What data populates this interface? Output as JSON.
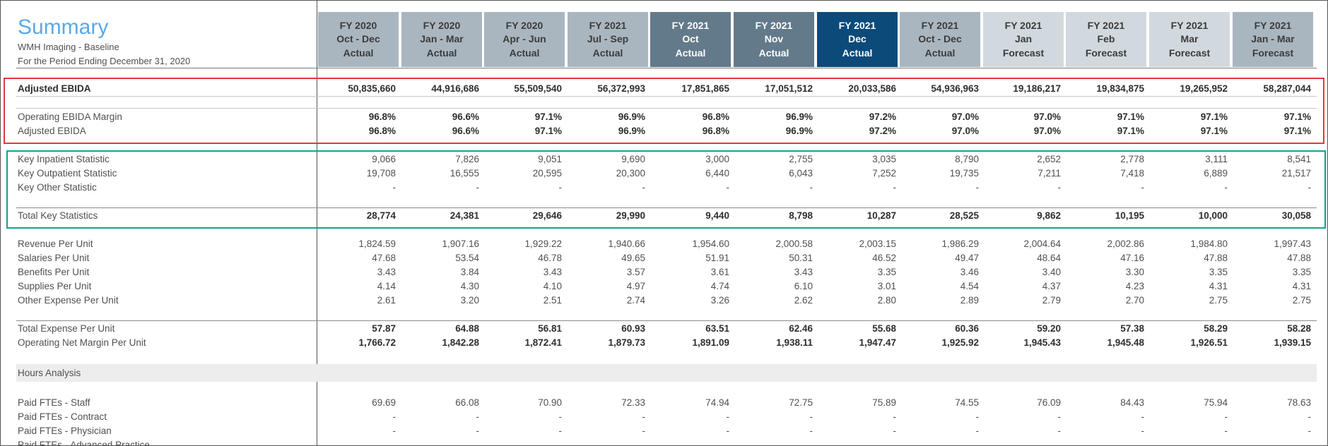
{
  "header": {
    "title": "Summary",
    "subtitle": "WMH Imaging - Baseline",
    "period": "For the Period Ending December 31, 2020"
  },
  "columns": [
    {
      "l1": "FY 2020",
      "l2": "Oct - Dec",
      "l3": "Actual"
    },
    {
      "l1": "FY 2020",
      "l2": "Jan - Mar",
      "l3": "Actual"
    },
    {
      "l1": "FY 2020",
      "l2": "Apr - Jun",
      "l3": "Actual"
    },
    {
      "l1": "FY 2021",
      "l2": "Jul - Sep",
      "l3": "Actual"
    },
    {
      "l1": "FY 2021",
      "l2": "Oct",
      "l3": "Actual"
    },
    {
      "l1": "FY 2021",
      "l2": "Nov",
      "l3": "Actual"
    },
    {
      "l1": "FY 2021",
      "l2": "Dec",
      "l3": "Actual"
    },
    {
      "l1": "FY 2021",
      "l2": "Oct - Dec",
      "l3": "Actual"
    },
    {
      "l1": "FY 2021",
      "l2": "Jan",
      "l3": "Forecast"
    },
    {
      "l1": "FY 2021",
      "l2": "Feb",
      "l3": "Forecast"
    },
    {
      "l1": "FY 2021",
      "l2": "Mar",
      "l3": "Forecast"
    },
    {
      "l1": "FY 2021",
      "l2": "Jan - Mar",
      "l3": "Forecast"
    }
  ],
  "rows": [
    {
      "label": "Adjusted EBIDA",
      "bold": true,
      "values": [
        "50,835,660",
        "44,916,686",
        "55,509,540",
        "56,372,993",
        "17,851,865",
        "17,051,512",
        "20,033,586",
        "54,936,963",
        "19,186,217",
        "19,834,875",
        "19,265,952",
        "58,287,044"
      ]
    },
    {
      "label": "Operating EBIDA Margin",
      "bold": false,
      "values": [
        "96.8%",
        "96.6%",
        "97.1%",
        "96.9%",
        "96.8%",
        "96.9%",
        "97.2%",
        "97.0%",
        "97.0%",
        "97.1%",
        "97.1%",
        "97.1%"
      ]
    },
    {
      "label": "Adjusted EBIDA",
      "bold": false,
      "values": [
        "96.8%",
        "96.6%",
        "97.1%",
        "96.9%",
        "96.8%",
        "96.9%",
        "97.2%",
        "97.0%",
        "97.0%",
        "97.1%",
        "97.1%",
        "97.1%"
      ]
    },
    {
      "label": "Key Inpatient Statistic",
      "bold": false,
      "values": [
        "9,066",
        "7,826",
        "9,051",
        "9,690",
        "3,000",
        "2,755",
        "3,035",
        "8,790",
        "2,652",
        "2,778",
        "3,111",
        "8,541"
      ]
    },
    {
      "label": "Key Outpatient Statistic",
      "bold": false,
      "values": [
        "19,708",
        "16,555",
        "20,595",
        "20,300",
        "6,440",
        "6,043",
        "7,252",
        "19,735",
        "7,211",
        "7,418",
        "6,889",
        "21,517"
      ]
    },
    {
      "label": "Key Other Statistic",
      "bold": false,
      "values": [
        "-",
        "-",
        "-",
        "-",
        "-",
        "-",
        "-",
        "-",
        "-",
        "-",
        "-",
        "-"
      ]
    },
    {
      "label": "Total Key Statistics",
      "bold": false,
      "values": [
        "28,774",
        "24,381",
        "29,646",
        "29,990",
        "9,440",
        "8,798",
        "10,287",
        "28,525",
        "9,862",
        "10,195",
        "10,000",
        "30,058"
      ]
    },
    {
      "label": "Revenue Per Unit",
      "bold": false,
      "values": [
        "1,824.59",
        "1,907.16",
        "1,929.22",
        "1,940.66",
        "1,954.60",
        "2,000.58",
        "2,003.15",
        "1,986.29",
        "2,004.64",
        "2,002.86",
        "1,984.80",
        "1,997.43"
      ]
    },
    {
      "label": "Salaries Per Unit",
      "bold": false,
      "values": [
        "47.68",
        "53.54",
        "46.78",
        "49.65",
        "51.91",
        "50.31",
        "46.52",
        "49.47",
        "48.64",
        "47.16",
        "47.88",
        "47.88"
      ]
    },
    {
      "label": "Benefits Per Unit",
      "bold": false,
      "values": [
        "3.43",
        "3.84",
        "3.43",
        "3.57",
        "3.61",
        "3.43",
        "3.35",
        "3.46",
        "3.40",
        "3.30",
        "3.35",
        "3.35"
      ]
    },
    {
      "label": "Supplies Per Unit",
      "bold": false,
      "values": [
        "4.14",
        "4.30",
        "4.10",
        "4.97",
        "4.74",
        "6.10",
        "3.01",
        "4.54",
        "4.37",
        "4.23",
        "4.31",
        "4.31"
      ]
    },
    {
      "label": "Other Expense Per Unit",
      "bold": false,
      "values": [
        "2.61",
        "3.20",
        "2.51",
        "2.74",
        "3.26",
        "2.62",
        "2.80",
        "2.89",
        "2.79",
        "2.70",
        "2.75",
        "2.75"
      ]
    },
    {
      "label": "Total Expense Per Unit",
      "bold": false,
      "values": [
        "57.87",
        "64.88",
        "56.81",
        "60.93",
        "63.51",
        "62.46",
        "55.68",
        "60.36",
        "59.20",
        "57.38",
        "58.29",
        "58.28"
      ]
    },
    {
      "label": "Operating Net Margin Per Unit",
      "bold": false,
      "values": [
        "1,766.72",
        "1,842.28",
        "1,872.41",
        "1,879.73",
        "1,891.09",
        "1,938.11",
        "1,947.47",
        "1,925.92",
        "1,945.43",
        "1,945.48",
        "1,926.51",
        "1,939.15"
      ]
    },
    {
      "label": "Paid FTEs - Staff",
      "bold": false,
      "values": [
        "69.69",
        "66.08",
        "70.90",
        "72.33",
        "74.94",
        "72.75",
        "75.89",
        "74.55",
        "76.09",
        "84.43",
        "75.94",
        "78.63"
      ]
    },
    {
      "label": "Paid FTEs - Contract",
      "bold": false,
      "values": [
        "-",
        "-",
        "-",
        "-",
        "-",
        "-",
        "-",
        "-",
        "-",
        "-",
        "-",
        "-"
      ]
    },
    {
      "label": "Paid FTEs - Physician",
      "bold": false,
      "values": [
        "-",
        "-",
        "-",
        "-",
        "-",
        "-",
        "-",
        "-",
        "-",
        "-",
        "-",
        "-"
      ]
    },
    {
      "label": "Paid FTEs - Advanced Practice",
      "bold": false,
      "values": []
    }
  ],
  "sections": {
    "hours_analysis": "Hours Analysis"
  },
  "colors": {
    "title": "#5aa9e6",
    "header_actual": "#aab6bf",
    "header_month": "#637a8b",
    "header_current": "#0c4a7a",
    "header_forecast": "#d2d9de",
    "highlight_red": "#e0393e",
    "highlight_teal": "#1aa08c"
  }
}
